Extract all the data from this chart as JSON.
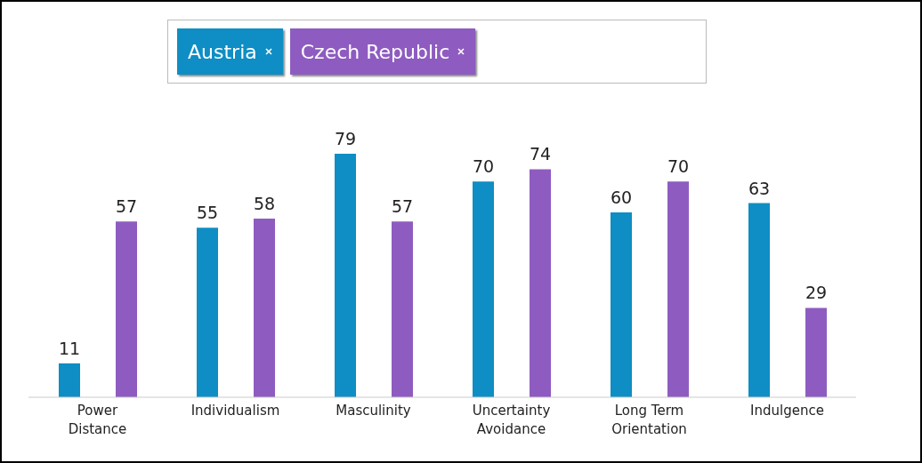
{
  "chart_data": {
    "type": "bar",
    "categories": [
      "Power Distance",
      "Individualism",
      "Masculinity",
      "Uncertainty Avoidance",
      "Long Term Orientation",
      "Indulgence"
    ],
    "series": [
      {
        "name": "Austria",
        "color": "#0e8ec4",
        "values": [
          11,
          55,
          79,
          70,
          60,
          63
        ]
      },
      {
        "name": "Czech Republic",
        "color": "#8e5cc0",
        "values": [
          57,
          58,
          57,
          74,
          70,
          29
        ]
      }
    ],
    "data_labels": true,
    "legend": "top",
    "grid": false
  }
}
